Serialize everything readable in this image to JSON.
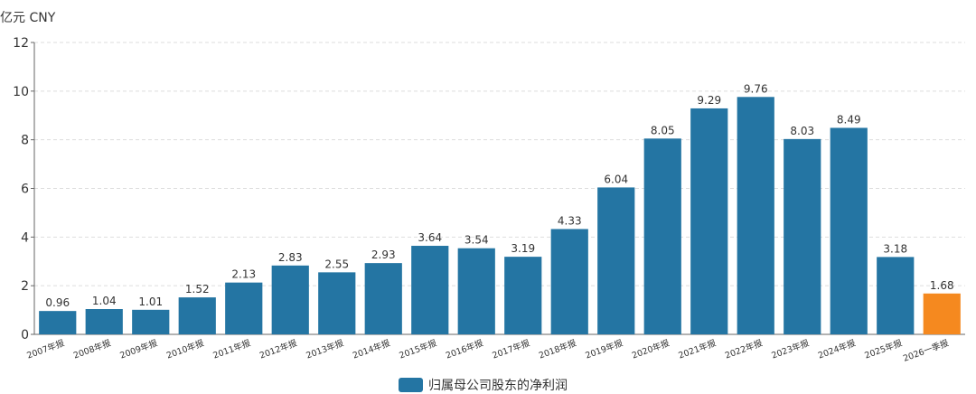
{
  "chart_data": {
    "type": "bar",
    "y_axis_label": "亿元  CNY",
    "categories": [
      "2007年报",
      "2008年报",
      "2009年报",
      "2010年报",
      "2011年报",
      "2012年报",
      "2013年报",
      "2014年报",
      "2015年报",
      "2016年报",
      "2017年报",
      "2018年报",
      "2019年报",
      "2020年报",
      "2021年报",
      "2022年报",
      "2023年报",
      "2024年报",
      "2025年报",
      "2026一季报"
    ],
    "series": [
      {
        "name": "归属母公司股东的净利润",
        "color": "#2475a3",
        "values": [
          0.96,
          1.04,
          1.01,
          1.52,
          2.13,
          2.83,
          2.55,
          2.93,
          3.64,
          3.54,
          3.19,
          4.33,
          6.04,
          8.05,
          9.29,
          9.76,
          8.03,
          8.49,
          3.18,
          1.68
        ],
        "colors": [
          "#2475a3",
          "#2475a3",
          "#2475a3",
          "#2475a3",
          "#2475a3",
          "#2475a3",
          "#2475a3",
          "#2475a3",
          "#2475a3",
          "#2475a3",
          "#2475a3",
          "#2475a3",
          "#2475a3",
          "#2475a3",
          "#2475a3",
          "#2475a3",
          "#2475a3",
          "#2475a3",
          "#2475a3",
          "#f5891f"
        ]
      }
    ],
    "ylim": [
      0,
      12
    ],
    "yticks": [
      0,
      2,
      4,
      6,
      8,
      10,
      12
    ],
    "grid": true
  }
}
